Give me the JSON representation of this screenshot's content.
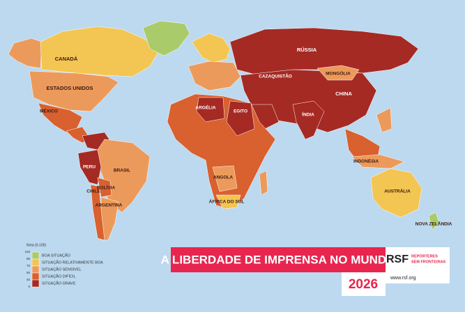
{
  "header": {
    "title": "A LIBERDADE DE IMPRENSA NO MUNDO",
    "year": "2026"
  },
  "logo": {
    "mark": "RSF",
    "name_line1": "REPÓRTERES",
    "name_line2": "SEM FRONTEIRAS",
    "url": "www.rsf.org"
  },
  "legend": {
    "title": "Nota (0-100)",
    "scale": [
      "100",
      "85",
      "70",
      "55",
      "40",
      "0"
    ],
    "items": [
      {
        "label": "BOA SITUAÇÃO",
        "color": "#a9cb6a"
      },
      {
        "label": "SITUAÇÃO RELATIVAMENTE BOA",
        "color": "#f3c553"
      },
      {
        "label": "SITUAÇÃO SENSÍVEL",
        "color": "#ec9a5b"
      },
      {
        "label": "SITUAÇÃO DIFÍCIL",
        "color": "#d9602f"
      },
      {
        "label": "SITUAÇÃO GRAVE",
        "color": "#a52a24"
      }
    ]
  },
  "countries": [
    "CANADÁ",
    "ESTADOS UNIDOS",
    "MÉXICO",
    "BRASIL",
    "PERU",
    "BOLÍVIA",
    "ARGENTINA",
    "CHILE",
    "RÚSSIA",
    "CHINA",
    "MONGÓLIA",
    "ÍNDIA",
    "ARGÉLIA",
    "EGITO",
    "ANGOLA",
    "ÁFRICA DO SUL",
    "AUSTRÁLIA",
    "INDONÉSIA",
    "NOVA ZELÂNDIA",
    "CAZAQUISTÃO"
  ]
}
